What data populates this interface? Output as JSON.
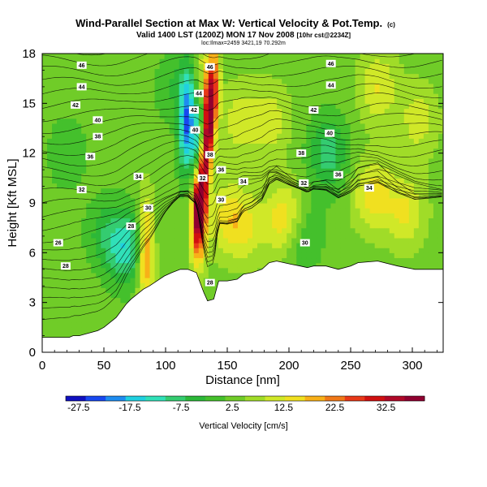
{
  "chart_data": {
    "type": "heatmap",
    "title": "Wind-Parallel Section at Max W: Vertical Velocity & Pot.Temp.",
    "title_mark": "(c)",
    "subtitle_main": "Valid 1400 LST (1200Z) MON 17 Nov 2008",
    "subtitle_tail": "[10hr cst@2234Z]",
    "subtitle_line3": "loc:Ilmax=2459 3421,19 70.292m",
    "xlabel": "Distance [nm]",
    "ylabel": "Height [Kft MSL]",
    "xlim": [
      0,
      325
    ],
    "ylim": [
      0,
      18
    ],
    "xticks": [
      0,
      50,
      100,
      150,
      200,
      250,
      300
    ],
    "yticks": [
      0,
      3,
      6,
      9,
      12,
      15,
      18
    ],
    "colorbar": {
      "label": "Vertical Velocity [cm/s]",
      "range": [
        -30,
        40
      ],
      "tick_values": [
        -27.5,
        -17.5,
        -7.5,
        2.5,
        12.5,
        22.5,
        32.5
      ],
      "tick_labels": [
        "-27.5",
        "-17.5",
        "-7.5",
        "2.5",
        "12.5",
        "22.5",
        "32.5"
      ],
      "colors": [
        "#1010c0",
        "#1848f0",
        "#1e8cf0",
        "#20d0e0",
        "#30e0b8",
        "#34cc70",
        "#2cb838",
        "#44c02c",
        "#70cc28",
        "#a0dc28",
        "#d0e828",
        "#f0e020",
        "#f8b018",
        "#f07818",
        "#e83818",
        "#d01010",
        "#b00828",
        "#900030"
      ]
    },
    "velocity_features": [
      {
        "x": 126,
        "z": 9.0,
        "w": 38
      },
      {
        "x": 134,
        "z": 15.5,
        "w": 30
      },
      {
        "x": 118,
        "z": 13.5,
        "w": -26
      },
      {
        "x": 84,
        "z": 6.0,
        "w": 22
      },
      {
        "x": 70,
        "z": 6.3,
        "w": -15
      },
      {
        "x": 52,
        "z": 7.0,
        "w": -8
      },
      {
        "x": 150,
        "z": 8.2,
        "w": 10
      },
      {
        "x": 165,
        "z": 7.5,
        "w": 8
      },
      {
        "x": 197,
        "z": 8.0,
        "w": 14
      },
      {
        "x": 210,
        "z": 7.0,
        "w": -8
      },
      {
        "x": 232,
        "z": 12.0,
        "w": -12
      },
      {
        "x": 268,
        "z": 9.5,
        "w": 12
      },
      {
        "x": 295,
        "z": 8.5,
        "w": 10
      },
      {
        "x": 272,
        "z": 16.0,
        "w": 10
      },
      {
        "x": 160,
        "z": 14.0,
        "w": 8
      },
      {
        "x": 185,
        "z": 14.0,
        "w": 8
      },
      {
        "x": 305,
        "z": 14.0,
        "w": 8
      },
      {
        "x": 108,
        "z": 16.0,
        "w": -6
      },
      {
        "x": 20,
        "z": 12.0,
        "w": -5
      },
      {
        "x": 30,
        "z": 3.0,
        "w": 2
      }
    ],
    "terrain": [
      [
        0,
        0.9
      ],
      [
        22,
        0.9
      ],
      [
        25,
        1.0
      ],
      [
        30,
        1.0
      ],
      [
        35,
        1.1
      ],
      [
        45,
        1.3
      ],
      [
        50,
        1.5
      ],
      [
        55,
        1.8
      ],
      [
        60,
        2.1
      ],
      [
        64,
        2.5
      ],
      [
        68,
        2.9
      ],
      [
        72,
        3.2
      ],
      [
        77,
        3.5
      ],
      [
        82,
        3.8
      ],
      [
        87,
        4.0
      ],
      [
        93,
        4.3
      ],
      [
        99,
        4.6
      ],
      [
        105,
        4.8
      ],
      [
        112,
        5.0
      ],
      [
        118,
        5.0
      ],
      [
        125,
        4.8
      ],
      [
        131,
        3.6
      ],
      [
        134,
        3.1
      ],
      [
        139,
        3.2
      ],
      [
        143,
        4.3
      ],
      [
        150,
        4.3
      ],
      [
        158,
        4.4
      ],
      [
        163,
        4.7
      ],
      [
        170,
        4.8
      ],
      [
        178,
        5.0
      ],
      [
        184,
        5.4
      ],
      [
        190,
        5.5
      ],
      [
        196,
        5.4
      ],
      [
        202,
        5.3
      ],
      [
        209,
        5.2
      ],
      [
        215,
        5.1
      ],
      [
        220,
        5.2
      ],
      [
        230,
        5.2
      ],
      [
        240,
        5.0
      ],
      [
        250,
        5.2
      ],
      [
        256,
        5.4
      ],
      [
        272,
        5.5
      ],
      [
        288,
        5.2
      ],
      [
        295,
        5.1
      ],
      [
        302,
        5.0
      ],
      [
        325,
        5.0
      ]
    ],
    "contour_labels": [
      {
        "x": 32,
        "z": 17.3,
        "text": "46"
      },
      {
        "x": 32,
        "z": 16.0,
        "text": "44"
      },
      {
        "x": 27,
        "z": 14.9,
        "text": "42"
      },
      {
        "x": 45,
        "z": 14.0,
        "text": "40"
      },
      {
        "x": 45,
        "z": 13.0,
        "text": "38"
      },
      {
        "x": 39,
        "z": 11.8,
        "text": "36"
      },
      {
        "x": 78,
        "z": 10.6,
        "text": "34"
      },
      {
        "x": 32,
        "z": 9.8,
        "text": "32"
      },
      {
        "x": 86,
        "z": 8.7,
        "text": "30"
      },
      {
        "x": 72,
        "z": 7.6,
        "text": "28"
      },
      {
        "x": 13,
        "z": 6.6,
        "text": "26"
      },
      {
        "x": 19,
        "z": 5.2,
        "text": "28"
      },
      {
        "x": 136,
        "z": 17.2,
        "text": "46"
      },
      {
        "x": 127,
        "z": 15.6,
        "text": "44"
      },
      {
        "x": 123,
        "z": 14.6,
        "text": "42"
      },
      {
        "x": 124,
        "z": 13.4,
        "text": "40"
      },
      {
        "x": 136,
        "z": 11.9,
        "text": "38"
      },
      {
        "x": 145,
        "z": 11.0,
        "text": "36"
      },
      {
        "x": 130,
        "z": 10.5,
        "text": "32"
      },
      {
        "x": 145,
        "z": 9.2,
        "text": "30"
      },
      {
        "x": 163,
        "z": 10.3,
        "text": "34"
      },
      {
        "x": 136,
        "z": 4.2,
        "text": "28"
      },
      {
        "x": 234,
        "z": 17.4,
        "text": "46"
      },
      {
        "x": 234,
        "z": 16.1,
        "text": "44"
      },
      {
        "x": 220,
        "z": 14.6,
        "text": "42"
      },
      {
        "x": 233,
        "z": 13.2,
        "text": "40"
      },
      {
        "x": 210,
        "z": 12.0,
        "text": "38"
      },
      {
        "x": 240,
        "z": 10.7,
        "text": "36"
      },
      {
        "x": 212,
        "z": 10.2,
        "text": "32"
      },
      {
        "x": 265,
        "z": 9.9,
        "text": "34"
      },
      {
        "x": 213,
        "z": 6.6,
        "text": "30"
      }
    ]
  }
}
